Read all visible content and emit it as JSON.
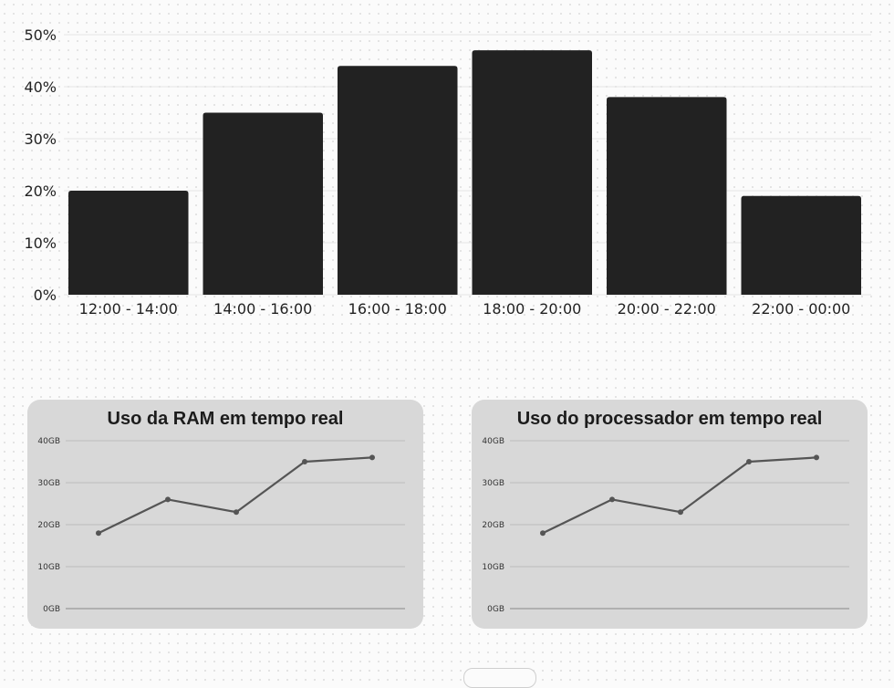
{
  "chart_data": [
    {
      "type": "bar",
      "title": "",
      "xlabel": "",
      "ylabel": "",
      "categories": [
        "12:00 - 14:00",
        "14:00 - 16:00",
        "16:00 - 18:00",
        "18:00 - 20:00",
        "20:00 - 22:00",
        "22:00 - 00:00"
      ],
      "values": [
        20,
        35,
        44,
        47,
        38,
        19
      ],
      "ylim": [
        0,
        50
      ],
      "yticks": [
        "0%",
        "10%",
        "20%",
        "30%",
        "40%",
        "50%"
      ],
      "grid": true,
      "colors": {
        "bar": "#222222",
        "text": "#222222",
        "grid": "#e6e6e6"
      }
    },
    {
      "type": "line",
      "title": "Uso da RAM em tempo real",
      "xlabel": "",
      "ylabel": "",
      "x": [
        1,
        2,
        3,
        4,
        5
      ],
      "values": [
        18,
        26,
        23,
        35,
        36
      ],
      "ylim": [
        0,
        40
      ],
      "yticks": [
        "0GB",
        "10GB",
        "20GB",
        "30GB",
        "40GB"
      ],
      "grid": true,
      "colors": {
        "line": "#555555",
        "panel": "#d8d8d8"
      }
    },
    {
      "type": "line",
      "title": "Uso do processador em tempo real",
      "xlabel": "",
      "ylabel": "",
      "x": [
        1,
        2,
        3,
        4,
        5
      ],
      "values": [
        18,
        26,
        23,
        35,
        36
      ],
      "ylim": [
        0,
        40
      ],
      "yticks": [
        "0GB",
        "10GB",
        "20GB",
        "30GB",
        "40GB"
      ],
      "grid": true,
      "colors": {
        "line": "#555555",
        "panel": "#d8d8d8"
      }
    }
  ]
}
